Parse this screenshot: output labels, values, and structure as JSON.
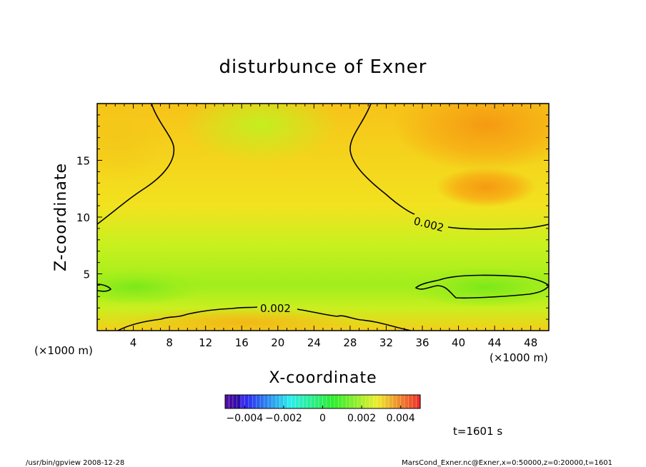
{
  "chart_data": {
    "type": "heatmap",
    "title": "disturbunce of Exner",
    "xlabel": "X-coordinate",
    "ylabel": "Z-coordinate",
    "x_unit": "(×1000 m)",
    "y_unit": "(×1000 m)",
    "xlim": [
      0,
      50
    ],
    "ylim": [
      0,
      20
    ],
    "x_ticks": [
      4,
      8,
      12,
      16,
      20,
      24,
      28,
      32,
      36,
      40,
      44,
      48
    ],
    "y_ticks": [
      5,
      10,
      15
    ],
    "contour_level": 0.002,
    "contour_labels": [
      "0.002",
      "0.002"
    ],
    "colorbar": {
      "range": [
        -0.005,
        0.005
      ],
      "tick_values": [
        -0.004,
        -0.002,
        0,
        0.002,
        0.004
      ],
      "tick_labels": [
        "−0.004",
        "−0.002",
        "0",
        "0.002",
        "0.004"
      ]
    },
    "time_label": "t=1601 s"
  },
  "footer": {
    "left": "/usr/bin/gpview   2008-12-28",
    "right": "MarsCond_Exner.nc@Exner,x=0:50000,z=0:20000,t=1601"
  }
}
